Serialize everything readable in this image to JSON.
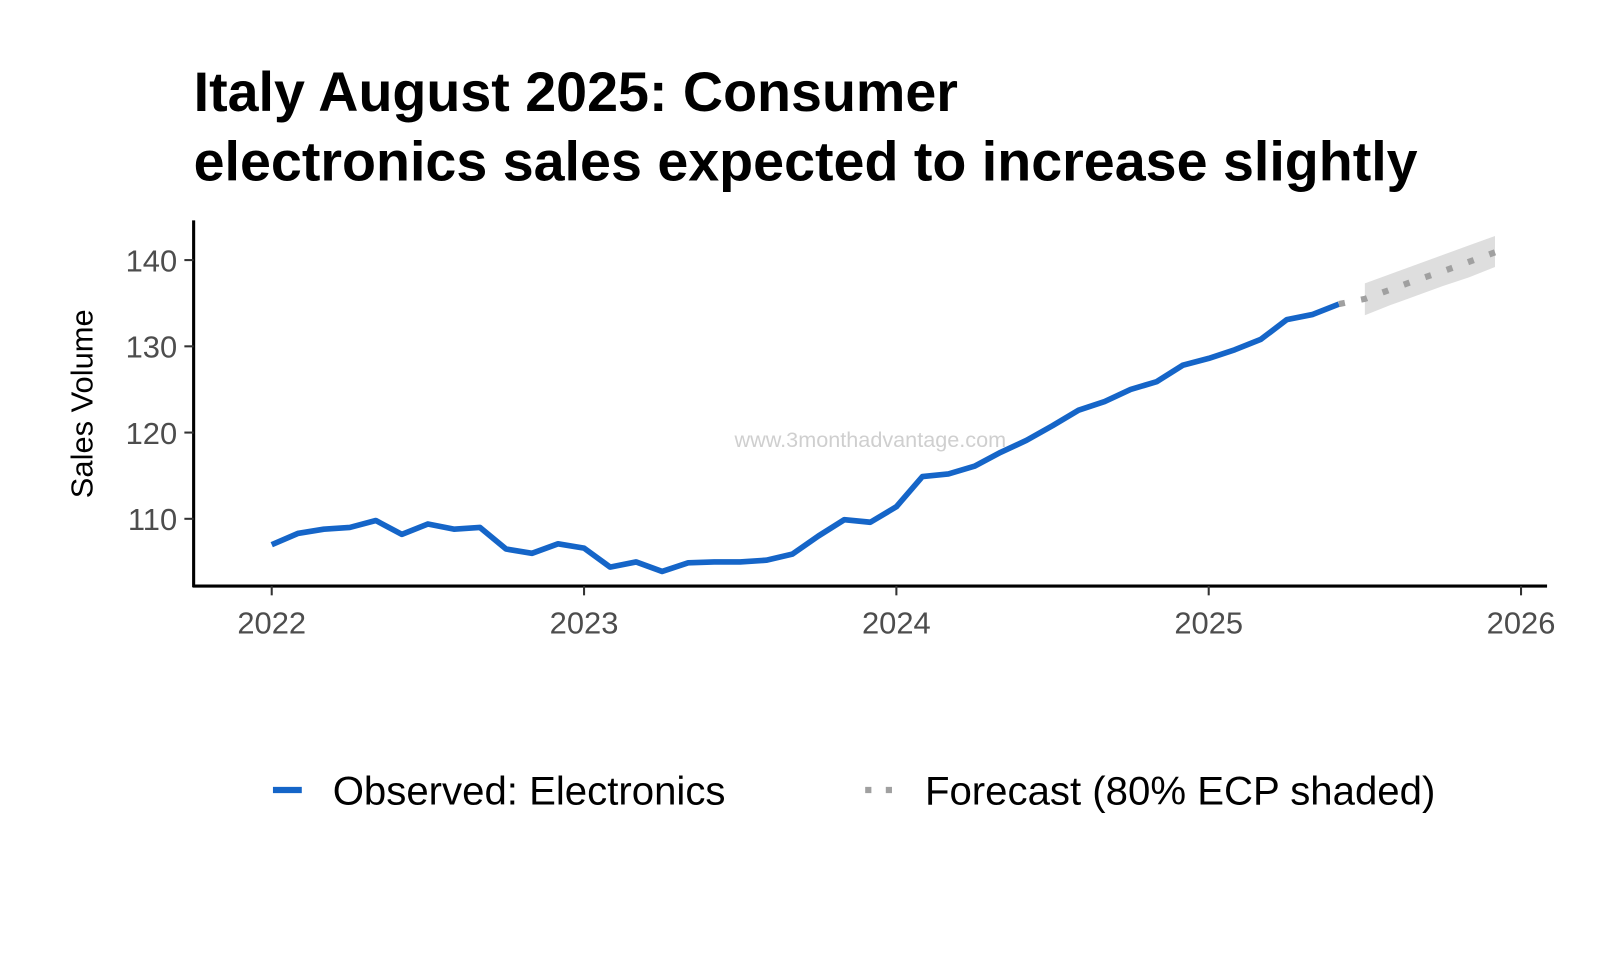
{
  "chart_data": {
    "type": "line",
    "title": [
      "Italy August 2025: Consumer",
      "electronics sales expected to increase slightly"
    ],
    "y_label": "Sales Volume",
    "watermark": "www.3monthadvantage.com",
    "xlim": [
      "2021-10",
      "2026-02"
    ],
    "xticks": [
      {
        "value": "2022-01",
        "label": "2022"
      },
      {
        "value": "2023-01",
        "label": "2023"
      },
      {
        "value": "2024-01",
        "label": "2024"
      },
      {
        "value": "2025-01",
        "label": "2025"
      },
      {
        "value": "2026-01",
        "label": "2026"
      }
    ],
    "ylim": [
      102.2,
      144.6
    ],
    "yticks": [
      110,
      120,
      130,
      140
    ],
    "grid": false,
    "legend": "bottom",
    "series": [
      {
        "name": "Observed: Electronics",
        "color": "#1565c8",
        "dash": false,
        "x": [
          "2022-01",
          "2022-02",
          "2022-03",
          "2022-04",
          "2022-05",
          "2022-06",
          "2022-07",
          "2022-08",
          "2022-09",
          "2022-10",
          "2022-11",
          "2022-12",
          "2023-01",
          "2023-02",
          "2023-03",
          "2023-04",
          "2023-05",
          "2023-06",
          "2023-07",
          "2023-08",
          "2023-09",
          "2023-10",
          "2023-11",
          "2023-12",
          "2024-01",
          "2024-02",
          "2024-03",
          "2024-04",
          "2024-05",
          "2024-06",
          "2024-07",
          "2024-08",
          "2024-09",
          "2024-10",
          "2024-11",
          "2024-12",
          "2025-01",
          "2025-02",
          "2025-03",
          "2025-04",
          "2025-05",
          "2025-06"
        ],
        "values": [
          107.0,
          108.3,
          108.8,
          109.0,
          109.8,
          108.2,
          109.4,
          108.8,
          109.0,
          106.5,
          106.0,
          107.1,
          106.6,
          104.4,
          105.0,
          103.9,
          104.9,
          105.0,
          105.0,
          105.2,
          105.9,
          108.0,
          109.9,
          109.6,
          111.4,
          114.9,
          115.2,
          116.1,
          117.7,
          119.1,
          120.8,
          122.6,
          123.6,
          125.0,
          125.9,
          127.8,
          128.6,
          129.6,
          130.8,
          133.1,
          133.7,
          134.9
        ]
      },
      {
        "name": "Forecast (80% ECP shaded)",
        "color": "#a0a0a0",
        "dash": true,
        "band_color": "#dedede",
        "x": [
          "2025-06",
          "2025-07",
          "2025-08",
          "2025-09",
          "2025-10",
          "2025-11",
          "2025-12"
        ],
        "values": [
          134.9,
          135.5,
          136.6,
          137.7,
          138.7,
          139.8,
          140.9
        ],
        "lower": [
          null,
          133.6,
          134.8,
          135.9,
          137.0,
          138.0,
          139.2
        ],
        "upper": [
          null,
          137.3,
          138.4,
          139.5,
          140.6,
          141.7,
          142.8
        ]
      }
    ]
  }
}
